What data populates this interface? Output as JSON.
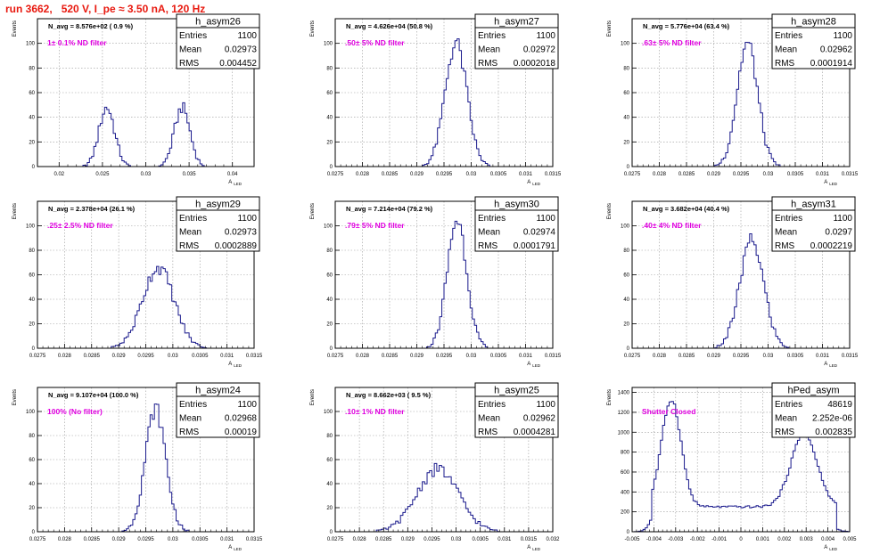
{
  "page": {
    "title": "run 3662,   520 V, I_pe ≈ 3.50 nA, 120 Hz"
  },
  "colors": {
    "histogram": "#1a1a8c",
    "annotation": "#e000e0",
    "title": "#e8190f",
    "grid": "#999999"
  },
  "common": {
    "ylabel": "Events",
    "xlabel_main": "A",
    "xlabel_sub": "LED",
    "stats_labels": {
      "entries": "Entries",
      "mean": "Mean",
      "rms": "RMS"
    }
  },
  "chart_data": [
    {
      "type": "bar",
      "id": "h_asym26",
      "title": "h_asym26",
      "navg": "N_avg = 8.576e+02 ( 0.9 %)",
      "note": "1± 0.1% ND filter",
      "stats": {
        "entries": "1100",
        "mean": "0.02973",
        "rms": "0.004452"
      },
      "xlim": [
        0.0175,
        0.0425
      ],
      "ylim": [
        0,
        120
      ],
      "xticks": [
        0.02,
        0.025,
        0.03,
        0.035,
        0.04
      ],
      "xticklabels": [
        "0.02",
        "0.025",
        "0.03",
        "0.035",
        "0.04"
      ],
      "yticks": [
        0,
        20,
        40,
        60,
        80,
        100
      ],
      "yticklabels": [
        "0",
        "20",
        "40",
        "60",
        "80",
        "100"
      ],
      "components": [
        {
          "mu": 0.0255,
          "sigma": 0.0009,
          "amp": 48
        },
        {
          "mu": 0.0342,
          "sigma": 0.0009,
          "amp": 48
        }
      ],
      "bin_width": 0.00025,
      "grid": true
    },
    {
      "type": "bar",
      "id": "h_asym27",
      "title": "h_asym27",
      "navg": "N_avg = 4.626e+04 (50.8 %)",
      "note": ".50± 5% ND filter",
      "stats": {
        "entries": "1100",
        "mean": "0.02972",
        "rms": "0.0002018"
      },
      "xlim": [
        0.0275,
        0.0315
      ],
      "ylim": [
        0,
        120
      ],
      "xticks": [
        0.0275,
        0.028,
        0.0285,
        0.029,
        0.0295,
        0.03,
        0.0305,
        0.031,
        0.0315
      ],
      "xticklabels": [
        "0.0275",
        "0.028",
        "0.0285",
        "0.029",
        "0.0295",
        "0.03",
        "0.0305",
        "0.031",
        "0.0315"
      ],
      "yticks": [
        0,
        20,
        40,
        60,
        80,
        100
      ],
      "yticklabels": [
        "0",
        "20",
        "40",
        "60",
        "80",
        "100"
      ],
      "components": [
        {
          "mu": 0.02972,
          "sigma": 0.0002,
          "amp": 100
        }
      ],
      "bin_width": 4e-05,
      "grid": true
    },
    {
      "type": "bar",
      "id": "h_asym28",
      "title": "h_asym28",
      "navg": "N_avg = 5.776e+04 (63.4 %)",
      "note": ".63± 5% ND filter",
      "stats": {
        "entries": "1100",
        "mean": "0.02962",
        "rms": "0.0001914"
      },
      "xlim": [
        0.0275,
        0.0315
      ],
      "ylim": [
        0,
        120
      ],
      "xticks": [
        0.0275,
        0.028,
        0.0285,
        0.029,
        0.0295,
        0.03,
        0.0305,
        0.031,
        0.0315
      ],
      "xticklabels": [
        "0.0275",
        "0.028",
        "0.0285",
        "0.029",
        "0.0295",
        "0.03",
        "0.0305",
        "0.031",
        "0.0315"
      ],
      "yticks": [
        0,
        20,
        40,
        60,
        80,
        100
      ],
      "yticklabels": [
        "0",
        "20",
        "40",
        "60",
        "80",
        "100"
      ],
      "components": [
        {
          "mu": 0.02962,
          "sigma": 0.00019,
          "amp": 100
        }
      ],
      "bin_width": 4e-05,
      "grid": true
    },
    {
      "type": "bar",
      "id": "h_asym29",
      "title": "h_asym29",
      "navg": "N_avg = 2.378e+04 (26.1 %)",
      "note": ".25± 2.5% ND filter",
      "stats": {
        "entries": "1100",
        "mean": "0.02973",
        "rms": "0.0002889"
      },
      "xlim": [
        0.0275,
        0.0315
      ],
      "ylim": [
        0,
        120
      ],
      "xticks": [
        0.0275,
        0.028,
        0.0285,
        0.029,
        0.0295,
        0.03,
        0.0305,
        0.031,
        0.0315
      ],
      "xticklabels": [
        "0.0275",
        "0.028",
        "0.0285",
        "0.029",
        "0.0295",
        "0.03",
        "0.0305",
        "0.031",
        "0.0315"
      ],
      "yticks": [
        0,
        20,
        40,
        60,
        80,
        100
      ],
      "yticklabels": [
        "0",
        "20",
        "40",
        "60",
        "80",
        "100"
      ],
      "components": [
        {
          "mu": 0.02973,
          "sigma": 0.00029,
          "amp": 66
        }
      ],
      "bin_width": 4e-05,
      "grid": true
    },
    {
      "type": "bar",
      "id": "h_asym30",
      "title": "h_asym30",
      "navg": "N_avg = 7.214e+04 (79.2 %)",
      "note": ".79± 5% ND filter",
      "stats": {
        "entries": "1100",
        "mean": "0.02974",
        "rms": "0.0001791"
      },
      "xlim": [
        0.0275,
        0.0315
      ],
      "ylim": [
        0,
        120
      ],
      "xticks": [
        0.0275,
        0.028,
        0.0285,
        0.029,
        0.0295,
        0.03,
        0.0305,
        0.031,
        0.0315
      ],
      "xticklabels": [
        "0.0275",
        "0.028",
        "0.0285",
        "0.029",
        "0.0295",
        "0.03",
        "0.0305",
        "0.031",
        "0.0315"
      ],
      "yticks": [
        0,
        20,
        40,
        60,
        80,
        100
      ],
      "yticklabels": [
        "0",
        "20",
        "40",
        "60",
        "80",
        "100"
      ],
      "components": [
        {
          "mu": 0.02974,
          "sigma": 0.00018,
          "amp": 105
        }
      ],
      "bin_width": 4e-05,
      "grid": true
    },
    {
      "type": "bar",
      "id": "h_asym31",
      "title": "h_asym31",
      "navg": "N_avg = 3.682e+04 (40.4 %)",
      "note": ".40± 4% ND filter",
      "stats": {
        "entries": "1100",
        "mean": "0.0297",
        "rms": "0.0002219"
      },
      "xlim": [
        0.0275,
        0.0315
      ],
      "ylim": [
        0,
        120
      ],
      "xticks": [
        0.0275,
        0.028,
        0.0285,
        0.029,
        0.0295,
        0.03,
        0.0305,
        0.031,
        0.0315
      ],
      "xticklabels": [
        "0.0275",
        "0.028",
        "0.0285",
        "0.029",
        "0.0295",
        "0.03",
        "0.0305",
        "0.031",
        "0.0315"
      ],
      "yticks": [
        0,
        20,
        40,
        60,
        80,
        100
      ],
      "yticklabels": [
        "0",
        "20",
        "40",
        "60",
        "80",
        "100"
      ],
      "components": [
        {
          "mu": 0.0297,
          "sigma": 0.00022,
          "amp": 88
        }
      ],
      "bin_width": 4e-05,
      "grid": true
    },
    {
      "type": "bar",
      "id": "h_asym24",
      "title": "h_asym24",
      "navg": "N_avg = 9.107e+04 (100.0 %)",
      "note": "100% (No filter)",
      "stats": {
        "entries": "1100",
        "mean": "0.02968",
        "rms": "0.00019"
      },
      "xlim": [
        0.0275,
        0.0315
      ],
      "ylim": [
        0,
        120
      ],
      "xticks": [
        0.0275,
        0.028,
        0.0285,
        0.029,
        0.0295,
        0.03,
        0.0305,
        0.031,
        0.0315
      ],
      "xticklabels": [
        "0.0275",
        "0.028",
        "0.0285",
        "0.029",
        "0.0295",
        "0.03",
        "0.0305",
        "0.031",
        "0.0315"
      ],
      "yticks": [
        0,
        20,
        40,
        60,
        80,
        100
      ],
      "yticklabels": [
        "0",
        "20",
        "40",
        "60",
        "80",
        "100"
      ],
      "components": [
        {
          "mu": 0.02968,
          "sigma": 0.00019,
          "amp": 102
        }
      ],
      "bin_width": 4e-05,
      "grid": true
    },
    {
      "type": "bar",
      "id": "h_asym25",
      "title": "h_asym25",
      "navg": "N_avg = 8.662e+03 ( 9.5 %)",
      "note": ".10± 1% ND filter",
      "stats": {
        "entries": "1100",
        "mean": "0.02962",
        "rms": "0.0004281"
      },
      "xlim": [
        0.0275,
        0.032
      ],
      "ylim": [
        0,
        120
      ],
      "xticks": [
        0.0275,
        0.028,
        0.0285,
        0.029,
        0.0295,
        0.03,
        0.0305,
        0.031,
        0.0315,
        0.032
      ],
      "xticklabels": [
        "0.0275",
        "0.028",
        "0.0285",
        "0.029",
        "0.0295",
        "0.03",
        "0.0305",
        "0.031",
        "0.0315",
        "0.032"
      ],
      "yticks": [
        0,
        20,
        40,
        60,
        80,
        100
      ],
      "yticklabels": [
        "0",
        "20",
        "40",
        "60",
        "80",
        "100"
      ],
      "components": [
        {
          "mu": 0.02962,
          "sigma": 0.00043,
          "amp": 52
        }
      ],
      "bin_width": 5e-05,
      "grid": true
    },
    {
      "type": "bar",
      "id": "hPed_asym",
      "title": "hPed_asym",
      "navg": "",
      "note": "Shutter Closed",
      "stats": {
        "entries": "48619",
        "mean": "2.252e-06",
        "rms": "0.002835"
      },
      "xlim": [
        -0.005,
        0.005
      ],
      "ylim": [
        0,
        1450
      ],
      "xticks": [
        -0.005,
        -0.004,
        -0.003,
        -0.002,
        -0.001,
        0,
        0.001,
        0.002,
        0.003,
        0.004,
        0.005
      ],
      "xticklabels": [
        "-0.005",
        "-0.004",
        "-0.003",
        "-0.002",
        "-0.001",
        "0",
        "0.001",
        "0.002",
        "0.003",
        "0.004",
        "0.005"
      ],
      "yticks": [
        0,
        200,
        400,
        600,
        800,
        1000,
        1200,
        1400
      ],
      "yticklabels": [
        "0",
        "200",
        "400",
        "600",
        "800",
        "1000",
        "1200",
        "1400"
      ],
      "baseline": 250,
      "components": [
        {
          "mu": -0.0032,
          "sigma": 0.00045,
          "amp": 1080
        },
        {
          "mu": 0.0029,
          "sigma": 0.0006,
          "amp": 730
        }
      ],
      "bin_width": 0.0001,
      "grid": true
    }
  ]
}
